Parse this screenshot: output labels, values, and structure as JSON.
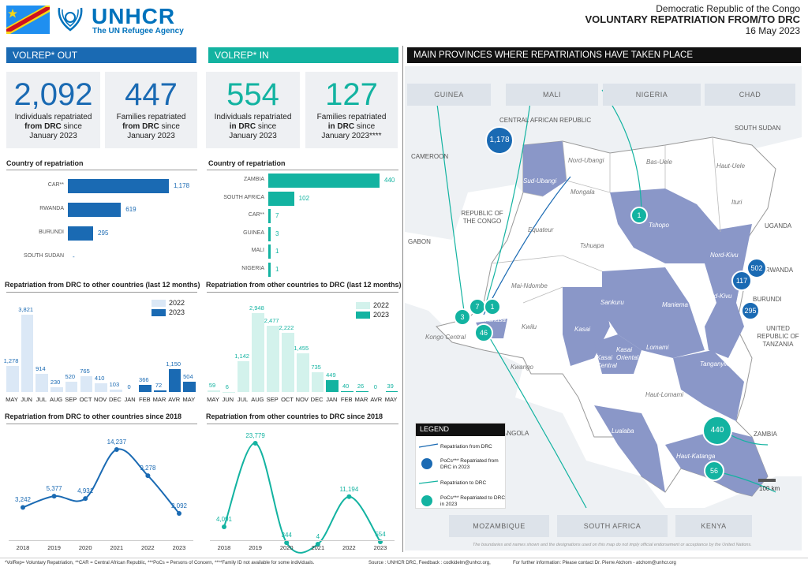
{
  "header": {
    "org_name": "UNHCR",
    "org_tagline": "The UN Refugee Agency",
    "country": "Democratic Republic of the Congo",
    "title": "VOLUNTARY REPATRIATION FROM/TO DRC",
    "date": "16 May 2023"
  },
  "colors": {
    "out": "#1a6ab3",
    "in": "#13b3a1",
    "map_province": "#8a97c8"
  },
  "out": {
    "section": "VOLREP* OUT",
    "individuals": {
      "value": "2,092",
      "l1": "Individuals repatriated",
      "l2": "from DRC",
      "l2b": " since",
      "l3": "January 2023"
    },
    "families": {
      "value": "447",
      "l1": "Families repatriated",
      "l2": "from DRC",
      "l2b": " since",
      "l3": "January 2023"
    },
    "country_title": "Country of repatriation",
    "countries": [
      {
        "name": "CAR**",
        "value": "1,178",
        "n": 1178
      },
      {
        "name": "RWANDA",
        "value": "619",
        "n": 619
      },
      {
        "name": "BURUNDI",
        "value": "295",
        "n": 295
      },
      {
        "name": "SOUTH SUDAN",
        "value": "-",
        "n": 0
      }
    ],
    "monthly_title": "Repatriation from DRC to other countries (last 12 months)",
    "yearly_title": "Repatriation from DRC to other countries since 2018"
  },
  "in": {
    "section": "VOLREP* IN",
    "individuals": {
      "value": "554",
      "l1": "Individuals repatriated",
      "l2": "in DRC",
      "l2b": " since",
      "l3": "January 2023"
    },
    "families": {
      "value": "127",
      "l1": "Families repatriated",
      "l2": "in DRC",
      "l2b": " since",
      "l3": "January 2023****"
    },
    "country_title": "Country of repatriation",
    "countries": [
      {
        "name": "ZAMBIA",
        "value": "440",
        "n": 440
      },
      {
        "name": "SOUTH AFRICA",
        "value": "102",
        "n": 102
      },
      {
        "name": "CAR**",
        "value": "7",
        "n": 7
      },
      {
        "name": "GUINEA",
        "value": "3",
        "n": 3
      },
      {
        "name": "MALI",
        "value": "1",
        "n": 1
      },
      {
        "name": "NIGERIA",
        "value": "1",
        "n": 1
      }
    ],
    "monthly_title": "Repatriation from other countries to DRC (last 12 months)",
    "yearly_title": "Repatriation from other countries to DRC since 2018"
  },
  "chart_data": [
    {
      "type": "bar",
      "title": "Repatriation from DRC to other countries (last 12 months)",
      "categories": [
        "MAY",
        "JUN",
        "JUL",
        "AUG",
        "SEP",
        "OCT",
        "NOV",
        "DEC",
        "JAN",
        "FEB",
        "MAR",
        "AVR",
        "MAY"
      ],
      "series": [
        {
          "name": "2022",
          "values": [
            1278,
            3821,
            914,
            230,
            520,
            765,
            410,
            103,
            0,
            null,
            null,
            null,
            null
          ]
        },
        {
          "name": "2023",
          "values": [
            null,
            null,
            null,
            null,
            null,
            null,
            null,
            null,
            null,
            366,
            72,
            1150,
            504
          ]
        }
      ]
    },
    {
      "type": "bar",
      "title": "Repatriation from other countries to DRC (last 12 months)",
      "categories": [
        "MAY",
        "JUN",
        "JUL",
        "AUG",
        "SEP",
        "OCT",
        "NOV",
        "DEC",
        "JAN",
        "FEB",
        "MAR",
        "AVR",
        "MAY"
      ],
      "series": [
        {
          "name": "2022",
          "values": [
            59,
            6,
            1142,
            2948,
            2477,
            2222,
            1455,
            735,
            null,
            null,
            null,
            null,
            null
          ]
        },
        {
          "name": "2023",
          "values": [
            null,
            null,
            null,
            null,
            null,
            null,
            null,
            null,
            449,
            40,
            26,
            0,
            39
          ]
        }
      ]
    },
    {
      "type": "line",
      "title": "Repatriation from DRC to other countries since 2018",
      "x": [
        "2018",
        "2019",
        "2020",
        "2021",
        "2022",
        "2023"
      ],
      "values": [
        3242,
        5377,
        4931,
        14237,
        9278,
        2092
      ],
      "labels": [
        "3,242",
        "5,377",
        "4,931",
        "14,237",
        "9,278",
        "2,092"
      ]
    },
    {
      "type": "line",
      "title": "Repatriation from other countries to DRC since 2018",
      "x": [
        "2018",
        "2019",
        "2020",
        "2021",
        "2022",
        "2023"
      ],
      "values": [
        4091,
        23779,
        344,
        4,
        11194,
        554
      ],
      "labels": [
        "4,091",
        "23,779",
        "344",
        "4",
        "11,194",
        "554"
      ]
    }
  ],
  "map": {
    "title": "MAIN PROVINCES WHERE REPATRIATIONS HAVE TAKEN PLACE",
    "country_boxes": [
      "GUINEA",
      "MALI",
      "NIGERIA",
      "CHAD",
      "MOZAMBIQUE",
      "SOUTH AFRICA",
      "KENYA"
    ],
    "neighbors": [
      "CENTRAL AFRICAN REPUBLIC",
      "SOUTH SUDAN",
      "CAMEROON",
      "REPUBLIC OF THE CONGO",
      "GABON",
      "UGANDA",
      "RWANDA",
      "BURUNDI",
      "UNITED REPUBLIC OF TANZANIA",
      "ANGOLA",
      "ZAMBIA"
    ],
    "provinces": [
      "Nord-Ubangi",
      "Bas-Uele",
      "Haut-Uele",
      "Sud-Ubangi",
      "Mongala",
      "Ituri",
      "Tshopo",
      "Equateur",
      "Tshuapa",
      "Nord-Kivu",
      "Mai-Ndombe",
      "Sankuru",
      "Maniema",
      "Sud-Kivu",
      "Kinshasa",
      "Kwilu",
      "Kasai",
      "Kasai Oriental",
      "Lomami",
      "Kongo Central",
      "Kwango",
      "Kasai Central",
      "Tanganyika",
      "Haut-Lomami",
      "Lualaba",
      "Haut-Katanga"
    ],
    "bubbles_out": [
      "1,178",
      "502",
      "117",
      "295"
    ],
    "bubbles_in": [
      "1",
      "7",
      "1",
      "3",
      "46",
      "440",
      "56"
    ],
    "scale": "100 km",
    "disclaimer": "The boundaries and names shown and the designations used on this map do not imply official endorsement or acceptance by the United Nations.",
    "legend": {
      "title": "LEGEND",
      "items": [
        "Repatriation from DRC",
        "PoCs*** Repatriated from DRC in 2023",
        "Repatriation to DRC",
        "PoCs*** Repatriated to DRC in 2023"
      ]
    }
  },
  "footer": {
    "notes": "*VolRep= Voluntary Repatriation, **CAR = Central African Republic, ***PoCs = Persons of Concern, ****Family ID not available for some individuals.",
    "source": "Source : UNHCR DRC, Feedback : codkidelm@unhcr.org,",
    "contact": "For further information: Please contact Dr. Pierre Atchom - atchom@unhcr.org"
  }
}
